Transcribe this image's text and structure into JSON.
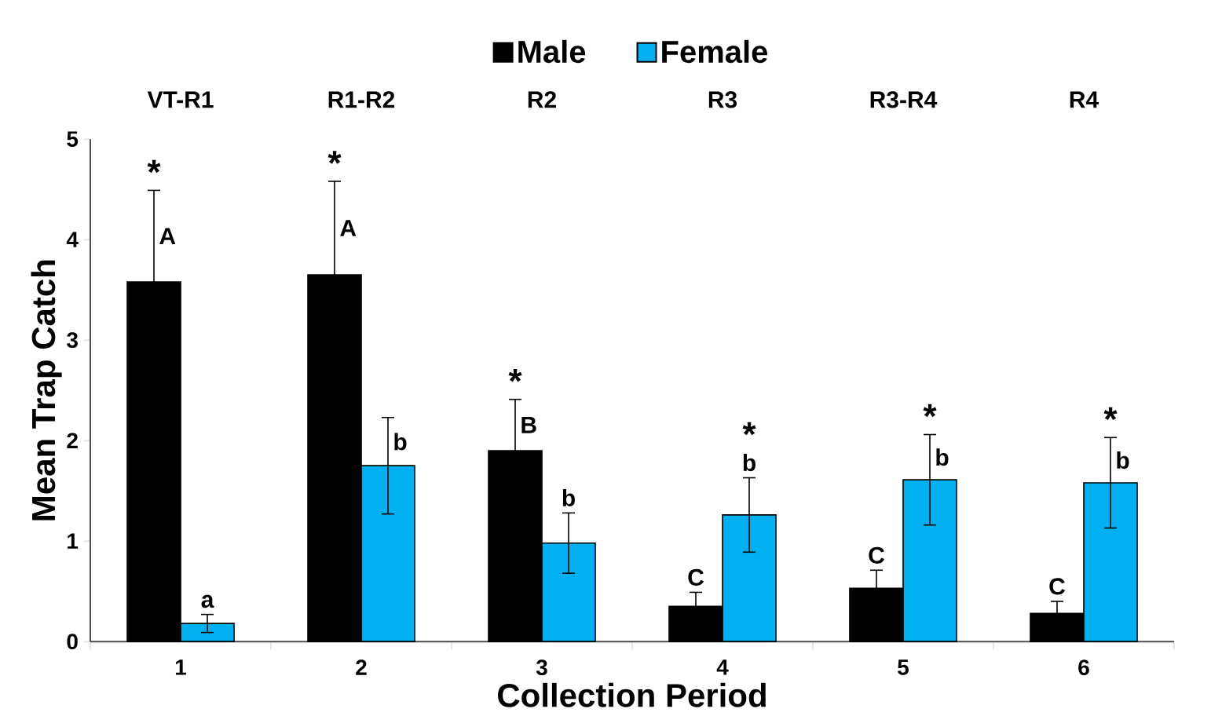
{
  "chart_data": {
    "type": "bar",
    "xlabel": "Collection Period",
    "ylabel": "Mean Trap Catch",
    "categories": [
      "1",
      "2",
      "3",
      "4",
      "5",
      "6"
    ],
    "series": [
      {
        "name": "Male",
        "color": "#000000",
        "values": [
          3.58,
          3.65,
          1.9,
          0.35,
          0.53,
          0.28
        ],
        "errors": [
          0.91,
          0.93,
          0.51,
          0.14,
          0.18,
          0.12
        ],
        "value_labels": [
          "A",
          "A",
          "B",
          "C",
          "C",
          "C"
        ]
      },
      {
        "name": "Female",
        "color": "#00b0f0",
        "values": [
          0.18,
          1.75,
          0.98,
          1.26,
          1.61,
          1.58
        ],
        "errors": [
          0.09,
          0.48,
          0.3,
          0.37,
          0.45,
          0.45
        ],
        "value_labels": [
          "a",
          "b",
          "b",
          "b",
          "b",
          "b"
        ]
      }
    ],
    "ylim": [
      0,
      5
    ],
    "yticks": [
      0,
      1,
      2,
      3,
      4,
      5
    ],
    "legend": "top",
    "annotations": [
      "VT-R1",
      "R1-R2",
      "R2",
      "R3",
      "R3-R4",
      "R4",
      "*",
      "*",
      "*",
      "*",
      "*",
      "*"
    ]
  }
}
